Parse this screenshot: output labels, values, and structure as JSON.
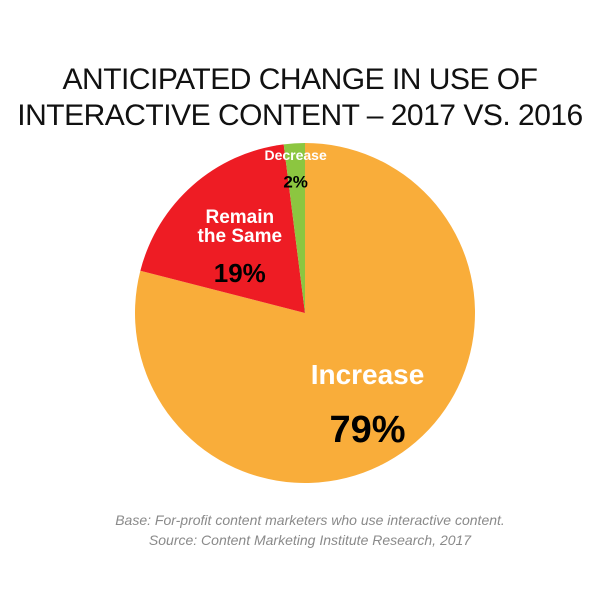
{
  "chart_data": {
    "type": "pie",
    "title": "ANTICIPATED CHANGE IN USE OF INTERACTIVE CONTENT – 2017 VS. 2016",
    "title_lines": [
      "ANTICIPATED CHANGE IN USE OF",
      "INTERACTIVE CONTENT – 2017 VS. 2016"
    ],
    "unit": "%",
    "slices": [
      {
        "id": "increase",
        "name": "Increase",
        "name_lines": [
          "Increase"
        ],
        "value": 79,
        "value_label": "79%",
        "color": "#f9ad3a",
        "name_color": "#ffffff",
        "value_color": "#000000"
      },
      {
        "id": "remain",
        "name": "Remain the Same",
        "name_lines": [
          "Remain",
          "the Same"
        ],
        "value": 19,
        "value_label": "19%",
        "color": "#ee1c24",
        "name_color": "#ffffff",
        "value_color": "#000000"
      },
      {
        "id": "decrease",
        "name": "Decrease",
        "name_lines": [
          "Decrease"
        ],
        "value": 2,
        "value_label": "2%",
        "color": "#8cc640",
        "name_color": "#ffffff",
        "value_color": "#000000"
      }
    ]
  },
  "footnotes": [
    "Base: For-profit content marketers who use interactive content.",
    "Source: Content Marketing Institute Research, 2017"
  ]
}
